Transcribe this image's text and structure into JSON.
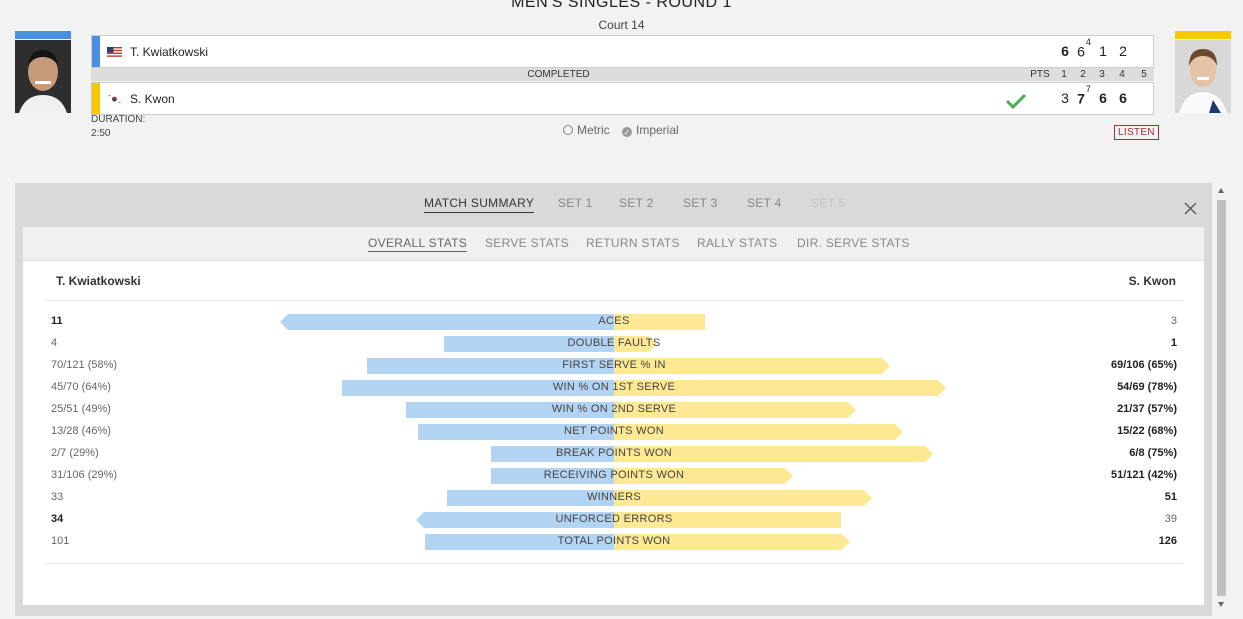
{
  "match": {
    "round": "MEN'S SINGLES - ROUND 1",
    "court": "Court 14",
    "status": "COMPLETED",
    "duration_label": "DURATION:",
    "duration_value": "2:50",
    "set_header": [
      "PTS",
      "1",
      "2",
      "3",
      "4",
      "5"
    ]
  },
  "players": [
    {
      "name": "T. Kwiatkowski",
      "flag": "us-flag-icon",
      "color": "#4a90e2",
      "sets": [
        {
          "g": "6",
          "tb": ""
        },
        {
          "g": "6",
          "tb": "4"
        },
        {
          "g": "1",
          "tb": ""
        },
        {
          "g": "2",
          "tb": ""
        }
      ],
      "winner": false,
      "pts": ""
    },
    {
      "name": "S. Kwon",
      "flag": "kr-flag-icon",
      "color": "#f5c800",
      "sets": [
        {
          "g": "3",
          "tb": ""
        },
        {
          "g": "7",
          "tb": "7"
        },
        {
          "g": "6",
          "tb": ""
        },
        {
          "g": "6",
          "tb": ""
        }
      ],
      "winner": true,
      "pts": ""
    }
  ],
  "units": {
    "metric": "Metric",
    "imperial": "Imperial",
    "selected": "Imperial"
  },
  "listen_label": "LISTEN",
  "tabs": [
    "MATCH SUMMARY",
    "SET 1",
    "SET 2",
    "SET 3",
    "SET 4",
    "SET 5"
  ],
  "subtabs": [
    "OVERALL STATS",
    "SERVE STATS",
    "RETURN STATS",
    "RALLY STATS",
    "DIR. SERVE STATS"
  ],
  "stats_header": {
    "left": "T. Kwiatkowski",
    "right": "S. Kwon"
  },
  "stats": [
    {
      "label": "ACES",
      "left": "11",
      "right": "3",
      "lv": 0.786,
      "rv": 0.214,
      "lb": true,
      "rb": false
    },
    {
      "label": "DOUBLE FAULTS",
      "left": "4",
      "right": "1",
      "lv": 0.4,
      "rv": 0.1,
      "lb": false,
      "rb": true
    },
    {
      "label": "FIRST SERVE % IN",
      "left": "70/121 (58%)",
      "right": "69/106 (65%)",
      "lv": 0.58,
      "rv": 0.65,
      "lb": false,
      "rb": true
    },
    {
      "label": "WIN % ON 1ST SERVE",
      "left": "45/70 (64%)",
      "right": "54/69 (78%)",
      "lv": 0.64,
      "rv": 0.78,
      "lb": false,
      "rb": true
    },
    {
      "label": "WIN % ON 2ND SERVE",
      "left": "25/51 (49%)",
      "right": "21/37 (57%)",
      "lv": 0.49,
      "rv": 0.57,
      "lb": false,
      "rb": true
    },
    {
      "label": "NET POINTS WON",
      "left": "13/28 (46%)",
      "right": "15/22 (68%)",
      "lv": 0.46,
      "rv": 0.68,
      "lb": false,
      "rb": true
    },
    {
      "label": "BREAK POINTS WON",
      "left": "2/7 (29%)",
      "right": "6/8 (75%)",
      "lv": 0.29,
      "rv": 0.75,
      "lb": false,
      "rb": true
    },
    {
      "label": "RECEIVING POINTS WON",
      "left": "31/106 (29%)",
      "right": "51/121 (42%)",
      "lv": 0.29,
      "rv": 0.42,
      "lb": false,
      "rb": true
    },
    {
      "label": "WINNERS",
      "left": "33",
      "right": "51",
      "lv": 0.393,
      "rv": 0.607,
      "lb": false,
      "rb": true
    },
    {
      "label": "UNFORCED ERRORS",
      "left": "34",
      "right": "39",
      "lv": 0.466,
      "rv": 0.534,
      "lb": true,
      "rb": false
    },
    {
      "label": "TOTAL POINTS WON",
      "left": "101",
      "right": "126",
      "lv": 0.445,
      "rv": 0.555,
      "lb": false,
      "rb": true
    }
  ]
}
